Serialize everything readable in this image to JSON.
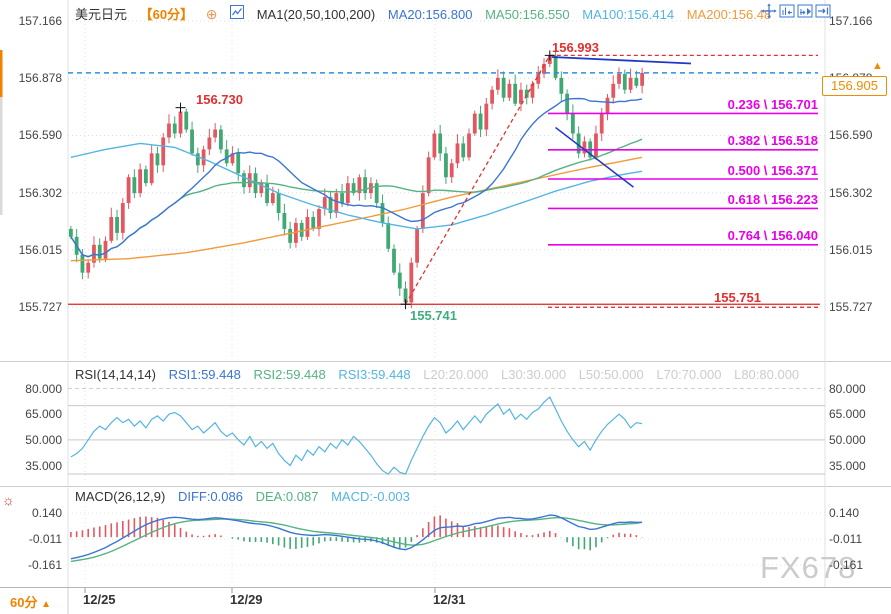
{
  "header": {
    "symbol": "美元日元",
    "period": "【60分】",
    "ma_label": "MA1(20,50,100,200)",
    "ma20": "MA20:156.800",
    "ma50": "MA50:156.550",
    "ma100": "MA100:156.414",
    "ma200": "MA200:156.48"
  },
  "rsi_header": {
    "name": "RSI(14,14,14)",
    "rsi1": "RSI1:59.448",
    "rsi2": "RSI2:59.448",
    "rsi3": "RSI3:59.448",
    "levels": [
      "L20:20.000",
      "L30:30.000",
      "L50:50.000",
      "L70:70.000",
      "L80:80.000"
    ]
  },
  "macd_header": {
    "name": "MACD(26,12,9)",
    "diff": "DIFF:0.086",
    "dea": "DEA:0.087",
    "macd": "MACD:-0.003"
  },
  "price_tag": {
    "value": "156.905",
    "direction_arrow": "▲"
  },
  "bottom_bar": {
    "period": "60分",
    "direction_arrow": "▲"
  },
  "watermark": "FX678",
  "annotations": {
    "high1": {
      "text": "156.730",
      "i": 19,
      "p": 156.73
    },
    "peak": {
      "text": "156.993",
      "i": 83,
      "p": 156.993
    },
    "low": {
      "text": "155.741",
      "i": 58,
      "p": 155.741
    },
    "fib_base": {
      "text": "155.751",
      "p": 155.751
    }
  },
  "axis": {
    "price_ticks": [
      {
        "text": "157.166",
        "v": 157.166
      },
      {
        "text": "156.878",
        "v": 156.878
      },
      {
        "text": "156.590",
        "v": 156.59
      },
      {
        "text": "156.302",
        "v": 156.302
      },
      {
        "text": "156.015",
        "v": 156.015
      },
      {
        "text": "155.727",
        "v": 155.727
      }
    ],
    "rsi_ticks": [
      {
        "text": "80.000",
        "v": 80
      },
      {
        "text": "65.000",
        "v": 65
      },
      {
        "text": "50.000",
        "v": 50
      },
      {
        "text": "35.000",
        "v": 35
      }
    ],
    "macd_ticks": [
      {
        "text": "0.140",
        "v": 0.14
      },
      {
        "text": "-0.011",
        "v": -0.011
      },
      {
        "text": "-0.161",
        "v": -0.161
      }
    ],
    "dates": [
      {
        "text": "12/25",
        "x": 83
      },
      {
        "text": "12/29",
        "x": 230
      },
      {
        "text": "12/31",
        "x": 433
      }
    ]
  },
  "colors": {
    "up_candle": "#e25862",
    "down_candle": "#3fa873",
    "ma20": "#3a75d4",
    "ma50": "#55b382",
    "ma100": "#54b4e4",
    "ma200": "#f09a3c",
    "fib": "#e800e8",
    "red_line": "#dd2222",
    "navy": "#2038c8",
    "current_price_line": "#2f8de4",
    "accent_orange": "#f08c00",
    "rsi_line": "#54b4e4",
    "hist_up": "#e25862",
    "hist_down": "#3fa873"
  },
  "chart_data": {
    "type": "candlestick+indicators",
    "symbol": "USD/JPY (美元日元)",
    "timeframe": "60分",
    "ylim": [
      155.727,
      157.166
    ],
    "x_axis_dates": [
      "12/25",
      "12/29",
      "12/31"
    ],
    "key_prices": {
      "local_high": 156.73,
      "swing_high": 156.993,
      "swing_low": 155.741,
      "fib_base": 155.751,
      "last": 156.905
    },
    "ma_values": {
      "MA20": 156.8,
      "MA50": 156.55,
      "MA100": 156.414,
      "MA200": 156.48
    },
    "rsi_values": {
      "RSI1": 59.448,
      "RSI2": 59.448,
      "RSI3": 59.448
    },
    "rsi_level_lines": [
      20,
      30,
      50,
      70,
      80
    ],
    "macd_values": {
      "DIFF": 0.086,
      "DEA": 0.087,
      "MACD": -0.003
    },
    "fib_levels": [
      {
        "ratio": "0.236",
        "price": 156.701,
        "label": "0.236 \\ 156.701"
      },
      {
        "ratio": "0.382",
        "price": 156.518,
        "label": "0.382 \\ 156.518"
      },
      {
        "ratio": "0.500",
        "price": 156.371,
        "label": "0.500 \\ 156.371"
      },
      {
        "ratio": "0.618",
        "price": 156.223,
        "label": "0.618 \\ 156.223"
      },
      {
        "ratio": "0.764",
        "price": 156.04,
        "label": "0.764 \\ 156.040"
      }
    ],
    "closes": [
      156.08,
      155.99,
      155.9,
      155.95,
      156.04,
      155.97,
      156.06,
      156.18,
      156.1,
      156.25,
      156.38,
      156.3,
      156.42,
      156.35,
      156.5,
      156.44,
      156.58,
      156.65,
      156.6,
      156.71,
      156.62,
      156.5,
      156.44,
      156.52,
      156.58,
      156.62,
      156.52,
      156.45,
      156.5,
      156.4,
      156.33,
      156.4,
      156.3,
      156.35,
      156.25,
      156.3,
      156.2,
      156.12,
      156.05,
      156.15,
      156.08,
      156.18,
      156.12,
      156.22,
      156.28,
      156.2,
      156.3,
      156.25,
      156.35,
      156.3,
      156.38,
      156.3,
      156.35,
      156.25,
      156.15,
      156.02,
      155.9,
      155.82,
      155.75,
      155.95,
      156.12,
      156.3,
      156.48,
      156.6,
      156.5,
      156.38,
      156.45,
      156.55,
      156.48,
      156.6,
      156.7,
      156.62,
      156.75,
      156.82,
      156.88,
      156.78,
      156.85,
      156.75,
      156.82,
      156.78,
      156.85,
      156.9,
      156.95,
      156.99,
      156.88,
      156.8,
      156.7,
      156.6,
      156.5,
      156.56,
      156.48,
      156.6,
      156.7,
      156.78,
      156.85,
      156.9,
      156.82,
      156.88,
      156.84,
      156.905
    ],
    "wick_overrides": {
      "19": {
        "high": 156.73
      },
      "58": {
        "low": 155.741
      },
      "83": {
        "high": 156.993
      }
    },
    "ma100_points": [
      [
        0,
        156.48
      ],
      [
        6,
        156.52
      ],
      [
        12,
        156.55
      ],
      [
        18,
        156.53
      ],
      [
        24,
        156.46
      ],
      [
        30,
        156.38
      ],
      [
        36,
        156.3
      ],
      [
        42,
        156.24
      ],
      [
        48,
        156.19
      ],
      [
        54,
        156.15
      ],
      [
        60,
        156.12
      ],
      [
        66,
        156.14
      ],
      [
        72,
        156.19
      ],
      [
        78,
        156.25
      ],
      [
        84,
        156.31
      ],
      [
        90,
        156.36
      ],
      [
        95,
        156.39
      ],
      [
        99,
        156.41
      ]
    ],
    "ma200_points": [
      [
        0,
        155.96
      ],
      [
        10,
        155.97
      ],
      [
        20,
        156.0
      ],
      [
        30,
        156.05
      ],
      [
        40,
        156.11
      ],
      [
        50,
        156.17
      ],
      [
        58,
        156.22
      ],
      [
        66,
        156.28
      ],
      [
        74,
        156.33
      ],
      [
        82,
        156.38
      ],
      [
        90,
        156.43
      ],
      [
        99,
        156.48
      ]
    ],
    "rsi": [
      40,
      42,
      45,
      50,
      55,
      58,
      56,
      60,
      63,
      60,
      62,
      58,
      61,
      57,
      62,
      64,
      61,
      65,
      66,
      64,
      60,
      56,
      58,
      54,
      57,
      60,
      55,
      52,
      54,
      50,
      47,
      52,
      46,
      49,
      45,
      48,
      42,
      38,
      35,
      41,
      38,
      44,
      41,
      46,
      43,
      48,
      45,
      50,
      47,
      52,
      49,
      45,
      41,
      36,
      32,
      30,
      34,
      31,
      30,
      38,
      45,
      52,
      58,
      63,
      60,
      54,
      57,
      61,
      56,
      60,
      64,
      60,
      65,
      68,
      71,
      65,
      68,
      62,
      65,
      62,
      66,
      68,
      72,
      75,
      68,
      61,
      55,
      50,
      46,
      49,
      44,
      50,
      55,
      59,
      62,
      65,
      62,
      57,
      60,
      59.448
    ],
    "diff": [
      -0.125,
      -0.118,
      -0.11,
      -0.1,
      -0.088,
      -0.075,
      -0.06,
      -0.042,
      -0.025,
      -0.005,
      0.015,
      0.035,
      0.055,
      0.072,
      0.086,
      0.098,
      0.106,
      0.112,
      0.115,
      0.113,
      0.108,
      0.104,
      0.102,
      0.104,
      0.108,
      0.112,
      0.11,
      0.105,
      0.1,
      0.095,
      0.088,
      0.082,
      0.078,
      0.075,
      0.07,
      0.062,
      0.052,
      0.04,
      0.028,
      0.02,
      0.015,
      0.012,
      0.01,
      0.012,
      0.015,
      0.013,
      0.01,
      0.005,
      0.0,
      -0.005,
      -0.01,
      -0.012,
      -0.015,
      -0.022,
      -0.032,
      -0.045,
      -0.058,
      -0.068,
      -0.072,
      -0.06,
      -0.04,
      -0.015,
      0.012,
      0.04,
      0.055,
      0.058,
      0.06,
      0.065,
      0.062,
      0.068,
      0.078,
      0.082,
      0.09,
      0.1,
      0.11,
      0.112,
      0.115,
      0.11,
      0.108,
      0.104,
      0.106,
      0.112,
      0.12,
      0.128,
      0.125,
      0.112,
      0.095,
      0.078,
      0.062,
      0.055,
      0.045,
      0.048,
      0.058,
      0.068,
      0.078,
      0.086,
      0.085,
      0.088,
      0.086,
      0.086
    ],
    "dea": [
      -0.14,
      -0.135,
      -0.13,
      -0.124,
      -0.116,
      -0.106,
      -0.095,
      -0.082,
      -0.068,
      -0.052,
      -0.036,
      -0.02,
      -0.004,
      0.012,
      0.028,
      0.042,
      0.056,
      0.068,
      0.078,
      0.086,
      0.092,
      0.096,
      0.098,
      0.1,
      0.101,
      0.103,
      0.105,
      0.105,
      0.104,
      0.102,
      0.1,
      0.096,
      0.092,
      0.089,
      0.086,
      0.082,
      0.076,
      0.07,
      0.062,
      0.054,
      0.046,
      0.04,
      0.034,
      0.03,
      0.027,
      0.024,
      0.021,
      0.018,
      0.014,
      0.01,
      0.006,
      0.002,
      -0.002,
      -0.006,
      -0.012,
      -0.019,
      -0.027,
      -0.035,
      -0.042,
      -0.046,
      -0.046,
      -0.041,
      -0.032,
      -0.02,
      -0.008,
      0.004,
      0.014,
      0.024,
      0.032,
      0.039,
      0.046,
      0.053,
      0.06,
      0.068,
      0.076,
      0.083,
      0.089,
      0.093,
      0.096,
      0.098,
      0.1,
      0.102,
      0.106,
      0.11,
      0.113,
      0.113,
      0.11,
      0.104,
      0.097,
      0.09,
      0.083,
      0.077,
      0.073,
      0.071,
      0.071,
      0.073,
      0.075,
      0.078,
      0.08,
      0.087
    ]
  }
}
